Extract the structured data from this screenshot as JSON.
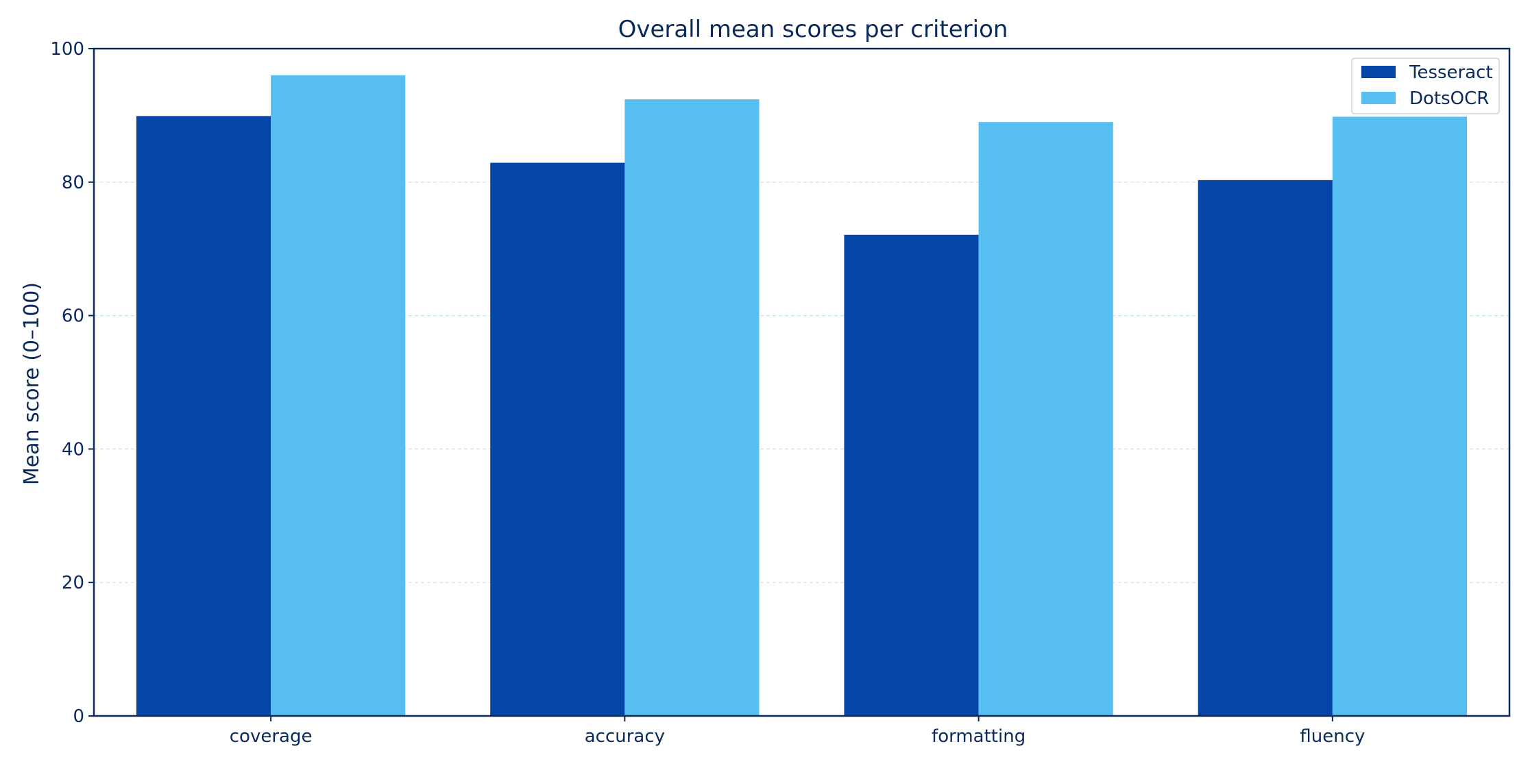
{
  "chart_data": {
    "type": "bar",
    "title": "Overall mean scores per criterion",
    "xlabel": "",
    "ylabel": "Mean score (0–100)",
    "categories": [
      "coverage",
      "accuracy",
      "formatting",
      "fluency"
    ],
    "series": [
      {
        "name": "Tesseract",
        "values": [
          89.9,
          82.9,
          72.1,
          80.3
        ],
        "color": "#0645a8"
      },
      {
        "name": "DotsOCR",
        "values": [
          96.0,
          92.4,
          89.0,
          89.8
        ],
        "color": "#56bef0"
      }
    ],
    "ylim": [
      0,
      100
    ],
    "yticks": [
      0,
      20,
      40,
      60,
      80,
      100
    ],
    "grid": true,
    "legend_position": "top-right",
    "colors": {
      "axis": "#0b2a5c",
      "text": "#0b2a5c",
      "grid": "#bfe3f2"
    }
  }
}
